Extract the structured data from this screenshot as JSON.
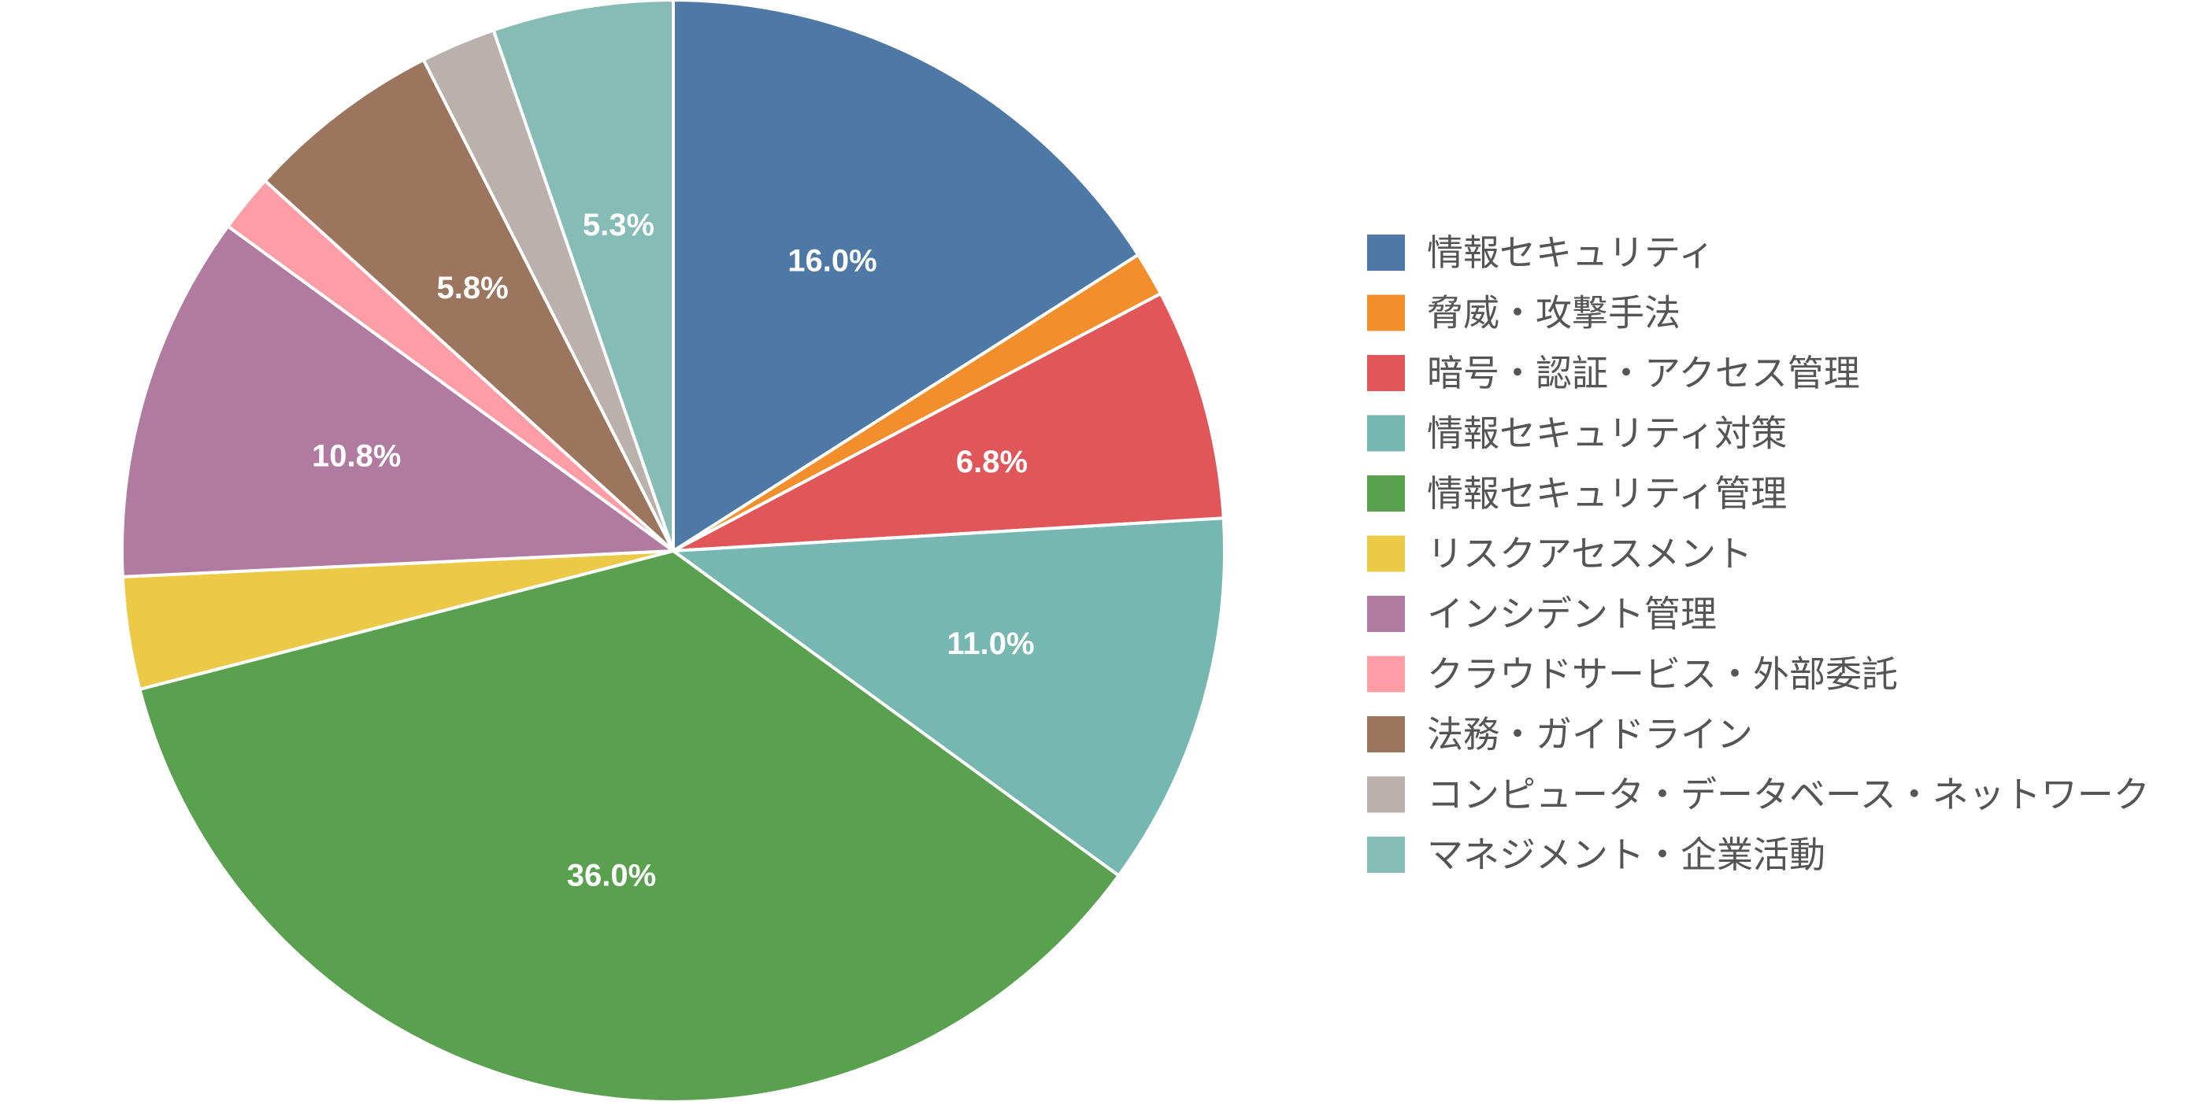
{
  "chart_data": {
    "type": "pie",
    "start": "12 o'clock",
    "direction": "clockwise",
    "slices": [
      {
        "label": "情報セキュリティ",
        "value": 16.0,
        "value_label": "16.0%",
        "color": "#4e79a7"
      },
      {
        "label": "脅威・攻撃手法",
        "value": 1.3,
        "value_label": "",
        "color": "#f28e2b"
      },
      {
        "label": "暗号・認証・アクセス管理",
        "value": 6.8,
        "value_label": "6.8%",
        "color": "#e15759"
      },
      {
        "label": "情報セキュリティ対策",
        "value": 11.0,
        "value_label": "11.0%",
        "color": "#76b7b2"
      },
      {
        "label": "情報セキュリティ管理",
        "value": 36.0,
        "value_label": "36.0%",
        "color": "#59a14f"
      },
      {
        "label": "リスクアセスメント",
        "value": 3.3,
        "value_label": "",
        "color": "#edc948"
      },
      {
        "label": "インシデント管理",
        "value": 10.8,
        "value_label": "10.8%",
        "color": "#b07aa1"
      },
      {
        "label": "クラウドサービス・外部委託",
        "value": 1.7,
        "value_label": "",
        "color": "#ff9da7"
      },
      {
        "label": "法務・ガイドライン",
        "value": 5.8,
        "value_label": "5.8%",
        "color": "#9c755f"
      },
      {
        "label": "コンピュータ・データベース・ネットワーク",
        "value": 2.2,
        "value_label": "",
        "color": "#bab0ac"
      },
      {
        "label": "マネジメント・企業活動",
        "value": 5.3,
        "value_label": "5.3%",
        "color": "#86bcb6"
      }
    ],
    "legend": {
      "position": "right",
      "items": [
        {
          "label": "情報セキュリティ",
          "color": "#4e79a7"
        },
        {
          "label": "脅威・攻撃手法",
          "color": "#f28e2b"
        },
        {
          "label": "暗号・認証・アクセス管理",
          "color": "#e15759"
        },
        {
          "label": "情報セキュリティ対策",
          "color": "#76b7b2"
        },
        {
          "label": "情報セキュリティ管理",
          "color": "#59a14f"
        },
        {
          "label": "リスクアセスメント",
          "color": "#edc948"
        },
        {
          "label": "インシデント管理",
          "color": "#b07aa1"
        },
        {
          "label": "クラウドサービス・外部委託",
          "color": "#ff9da7"
        },
        {
          "label": "法務・ガイドライン",
          "color": "#9c755f"
        },
        {
          "label": "コンピュータ・データベース・ネットワーク",
          "color": "#bab0ac"
        },
        {
          "label": "マネジメント・企業活動",
          "color": "#86bcb6"
        }
      ]
    }
  }
}
